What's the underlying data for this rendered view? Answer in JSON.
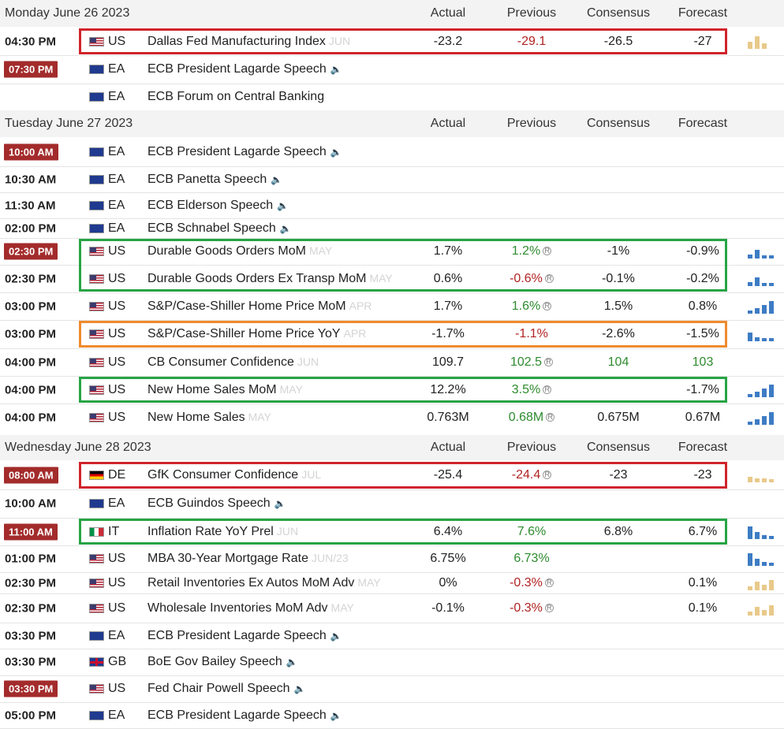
{
  "columns": {
    "actual": "Actual",
    "previous": "Previous",
    "consensus": "Consensus",
    "forecast": "Forecast"
  },
  "days": [
    {
      "date": "Monday June 26 2023"
    },
    {
      "date": "Tuesday June 27 2023"
    },
    {
      "date": "Wednesday June 28 2023"
    }
  ],
  "events": [
    {
      "day": 0,
      "time": "04:30 PM",
      "badge": false,
      "flag": "us",
      "country": "US",
      "event": "Dallas Fed Manufacturing Index",
      "period": "JUN",
      "speech": false,
      "actual": "-23.2",
      "previous": "-29.1",
      "previous_color": "neg",
      "revised": false,
      "consensus": "-26.5",
      "forecast": "-27",
      "forecast_color": "",
      "consensus_color": "",
      "spark": "up-tan",
      "highlight": "red"
    },
    {
      "day": 0,
      "time": "07:30 PM",
      "badge": true,
      "flag": "ea",
      "country": "EA",
      "event": "ECB President Lagarde Speech",
      "period": "",
      "speech": true,
      "actual": "",
      "previous": "",
      "previous_color": "",
      "revised": false,
      "consensus": "",
      "forecast": "",
      "spark": "",
      "highlight": ""
    },
    {
      "day": 0,
      "time": "",
      "badge": false,
      "flag": "ea",
      "country": "EA",
      "event": "ECB Forum on Central Banking",
      "period": "",
      "speech": false,
      "actual": "",
      "previous": "",
      "previous_color": "",
      "revised": false,
      "consensus": "",
      "forecast": "",
      "spark": "",
      "highlight": ""
    },
    {
      "day": 1,
      "time": "10:00 AM",
      "badge": true,
      "flag": "ea",
      "country": "EA",
      "event": "ECB President Lagarde Speech",
      "period": "",
      "speech": true,
      "actual": "",
      "previous": "",
      "previous_color": "",
      "revised": false,
      "consensus": "",
      "forecast": "",
      "spark": "",
      "highlight": ""
    },
    {
      "day": 1,
      "time": "10:30 AM",
      "badge": false,
      "flag": "ea",
      "country": "EA",
      "event": "ECB Panetta Speech",
      "period": "",
      "speech": true,
      "actual": "",
      "previous": "",
      "previous_color": "",
      "revised": false,
      "consensus": "",
      "forecast": "",
      "spark": "",
      "highlight": ""
    },
    {
      "day": 1,
      "time": "11:30 AM",
      "badge": false,
      "flag": "ea",
      "country": "EA",
      "event": "ECB Elderson Speech",
      "period": "",
      "speech": true,
      "actual": "",
      "previous": "",
      "previous_color": "",
      "revised": false,
      "consensus": "",
      "forecast": "",
      "spark": "",
      "highlight": ""
    },
    {
      "day": 1,
      "time": "02:00 PM",
      "badge": false,
      "flag": "ea",
      "country": "EA",
      "event": "ECB Schnabel Speech",
      "period": "",
      "speech": true,
      "actual": "",
      "previous": "",
      "previous_color": "",
      "revised": false,
      "consensus": "",
      "forecast": "",
      "spark": "",
      "highlight": ""
    },
    {
      "day": 1,
      "time": "02:30 PM",
      "badge": true,
      "flag": "us",
      "country": "US",
      "event": "Durable Goods Orders MoM",
      "period": "MAY",
      "speech": false,
      "actual": "1.7%",
      "previous": "1.2%",
      "previous_color": "pos",
      "revised": true,
      "consensus": "-1%",
      "forecast": "-0.9%",
      "spark": "mixed-blue",
      "highlight": "green"
    },
    {
      "day": 1,
      "time": "02:30 PM",
      "badge": false,
      "flag": "us",
      "country": "US",
      "event": "Durable Goods Orders Ex Transp MoM",
      "period": "MAY",
      "speech": false,
      "actual": "0.6%",
      "previous": "-0.6%",
      "previous_color": "neg",
      "revised": true,
      "consensus": "-0.1%",
      "forecast": "-0.2%",
      "spark": "mixed-blue",
      "highlight": "green"
    },
    {
      "day": 1,
      "time": "03:00 PM",
      "badge": false,
      "flag": "us",
      "country": "US",
      "event": "S&P/Case-Shiller Home Price MoM",
      "period": "APR",
      "speech": false,
      "actual": "1.7%",
      "previous": "1.6%",
      "previous_color": "pos",
      "revised": true,
      "consensus": "1.5%",
      "forecast": "0.8%",
      "spark": "rising-blue",
      "highlight": ""
    },
    {
      "day": 1,
      "time": "03:00 PM",
      "badge": false,
      "flag": "us",
      "country": "US",
      "event": "S&P/Case-Shiller Home Price YoY",
      "period": "APR",
      "speech": false,
      "actual": "-1.7%",
      "previous": "-1.1%",
      "previous_color": "neg",
      "revised": false,
      "consensus": "-2.6%",
      "forecast": "-1.5%",
      "spark": "falling-mix",
      "highlight": "orange"
    },
    {
      "day": 1,
      "time": "04:00 PM",
      "badge": false,
      "flag": "us",
      "country": "US",
      "event": "CB Consumer Confidence",
      "period": "JUN",
      "speech": false,
      "actual": "109.7",
      "previous": "102.5",
      "previous_color": "pos",
      "revised": true,
      "consensus": "104",
      "consensus_color": "pos",
      "forecast": "103",
      "forecast_color": "pos",
      "spark": "",
      "highlight": ""
    },
    {
      "day": 1,
      "time": "04:00 PM",
      "badge": false,
      "flag": "us",
      "country": "US",
      "event": "New Home Sales MoM",
      "period": "MAY",
      "speech": false,
      "actual": "12.2%",
      "previous": "3.5%",
      "previous_color": "pos",
      "revised": true,
      "consensus": "",
      "forecast": "-1.7%",
      "spark": "rising-blue",
      "highlight": "green"
    },
    {
      "day": 1,
      "time": "04:00 PM",
      "badge": false,
      "flag": "us",
      "country": "US",
      "event": "New Home Sales",
      "period": "MAY",
      "speech": false,
      "actual": "0.763M",
      "previous": "0.68M",
      "previous_color": "pos",
      "revised": true,
      "consensus": "0.675M",
      "forecast": "0.67M",
      "spark": "rising-blue",
      "highlight": ""
    },
    {
      "day": 2,
      "time": "08:00 AM",
      "badge": true,
      "flag": "de",
      "country": "DE",
      "event": "GfK Consumer Confidence",
      "period": "JUL",
      "speech": false,
      "actual": "-25.4",
      "previous": "-24.4",
      "previous_color": "neg",
      "revised": true,
      "consensus": "-23",
      "forecast": "-23",
      "spark": "flat-tan",
      "highlight": "red"
    },
    {
      "day": 2,
      "time": "10:00 AM",
      "badge": false,
      "flag": "ea",
      "country": "EA",
      "event": "ECB Guindos Speech",
      "period": "",
      "speech": true,
      "actual": "",
      "previous": "",
      "previous_color": "",
      "revised": false,
      "consensus": "",
      "forecast": "",
      "spark": "",
      "highlight": ""
    },
    {
      "day": 2,
      "time": "11:00 AM",
      "badge": true,
      "flag": "it",
      "country": "IT",
      "event": "Inflation Rate YoY Prel",
      "period": "JUN",
      "speech": false,
      "actual": "6.4%",
      "previous": "7.6%",
      "previous_color": "pos",
      "revised": false,
      "consensus": "6.8%",
      "forecast": "6.7%",
      "spark": "falling-blue",
      "highlight": "green"
    },
    {
      "day": 2,
      "time": "01:00 PM",
      "badge": false,
      "flag": "us",
      "country": "US",
      "event": "MBA 30-Year Mortgage Rate",
      "period": "JUN/23",
      "speech": false,
      "actual": "6.75%",
      "previous": "6.73%",
      "previous_color": "pos",
      "revised": false,
      "consensus": "",
      "forecast": "",
      "spark": "falling-blue",
      "highlight": ""
    },
    {
      "day": 2,
      "time": "02:30 PM",
      "badge": false,
      "flag": "us",
      "country": "US",
      "event": "Retail Inventories Ex Autos MoM Adv",
      "period": "MAY",
      "speech": false,
      "actual": "0%",
      "previous": "-0.3%",
      "previous_color": "neg",
      "revised": true,
      "consensus": "",
      "forecast": "0.1%",
      "spark": "mixed-tan",
      "highlight": ""
    },
    {
      "day": 2,
      "time": "02:30 PM",
      "badge": false,
      "flag": "us",
      "country": "US",
      "event": "Wholesale Inventories MoM Adv",
      "period": "MAY",
      "speech": false,
      "actual": "-0.1%",
      "previous": "-0.3%",
      "previous_color": "neg",
      "revised": true,
      "consensus": "",
      "forecast": "0.1%",
      "spark": "mixed-tan",
      "highlight": ""
    },
    {
      "day": 2,
      "time": "03:30 PM",
      "badge": false,
      "flag": "ea",
      "country": "EA",
      "event": "ECB President Lagarde Speech",
      "period": "",
      "speech": true,
      "actual": "",
      "previous": "",
      "previous_color": "",
      "revised": false,
      "consensus": "",
      "forecast": "",
      "spark": "",
      "highlight": ""
    },
    {
      "day": 2,
      "time": "03:30 PM",
      "badge": false,
      "flag": "gb",
      "country": "GB",
      "event": "BoE Gov Bailey Speech",
      "period": "",
      "speech": true,
      "actual": "",
      "previous": "",
      "previous_color": "",
      "revised": false,
      "consensus": "",
      "forecast": "",
      "spark": "",
      "highlight": ""
    },
    {
      "day": 2,
      "time": "03:30 PM",
      "badge": true,
      "flag": "us",
      "country": "US",
      "event": "Fed Chair Powell Speech",
      "period": "",
      "speech": true,
      "actual": "",
      "previous": "",
      "previous_color": "",
      "revised": false,
      "consensus": "",
      "forecast": "",
      "spark": "",
      "highlight": ""
    },
    {
      "day": 2,
      "time": "05:00 PM",
      "badge": false,
      "flag": "ea",
      "country": "EA",
      "event": "ECB President Lagarde Speech",
      "period": "",
      "speech": true,
      "actual": "",
      "previous": "",
      "previous_color": "",
      "revised": false,
      "consensus": "",
      "forecast": "",
      "spark": "",
      "highlight": ""
    }
  ],
  "icons": {
    "speaker": "speaker-icon",
    "revised": "revised-icon"
  },
  "colors": {
    "positive": "#2e8b2e",
    "negative": "#b22222",
    "badge": "#a32b2b",
    "highlight_red": "#d0242b",
    "highlight_green": "#27a444",
    "highlight_orange": "#ef8a2c"
  }
}
